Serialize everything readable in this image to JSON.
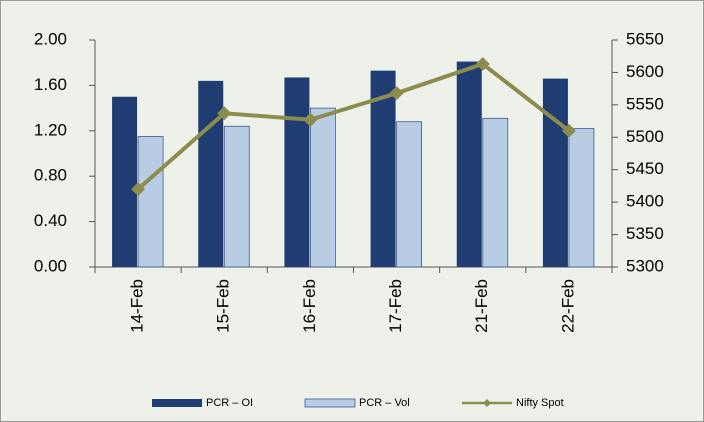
{
  "chart_data": {
    "type": "bar",
    "categories": [
      "14-Feb",
      "15-Feb",
      "16-Feb",
      "17-Feb",
      "21-Feb",
      "22-Feb"
    ],
    "series": [
      {
        "name": "PCR – OI",
        "color": "#1f3d73",
        "type": "bar",
        "values": [
          1.5,
          1.64,
          1.67,
          1.73,
          1.81,
          1.66
        ]
      },
      {
        "name": "PCR – Vol",
        "color": "#b8cce4",
        "type": "bar",
        "values": [
          1.15,
          1.24,
          1.4,
          1.28,
          1.31,
          1.22
        ]
      },
      {
        "name": "Nifty Spot",
        "color": "#8c8c4e",
        "type": "line",
        "axis": "y2",
        "values": [
          5420,
          5537,
          5527,
          5568,
          5613,
          5510
        ]
      }
    ],
    "ylim": [
      0,
      2
    ],
    "yticks": [
      {
        "value": 0,
        "label": "0.00"
      },
      {
        "value": 0.4,
        "label": "0.40"
      },
      {
        "value": 0.8,
        "label": "0.80"
      },
      {
        "value": 1.2,
        "label": "1.20"
      },
      {
        "value": 1.6,
        "label": "1.60"
      },
      {
        "value": 2,
        "label": "2.00"
      }
    ],
    "y2lim": [
      5300,
      5650
    ],
    "y2ticks": [
      5300,
      5350,
      5400,
      5450,
      5500,
      5550,
      5600,
      5650
    ],
    "grid": false
  }
}
